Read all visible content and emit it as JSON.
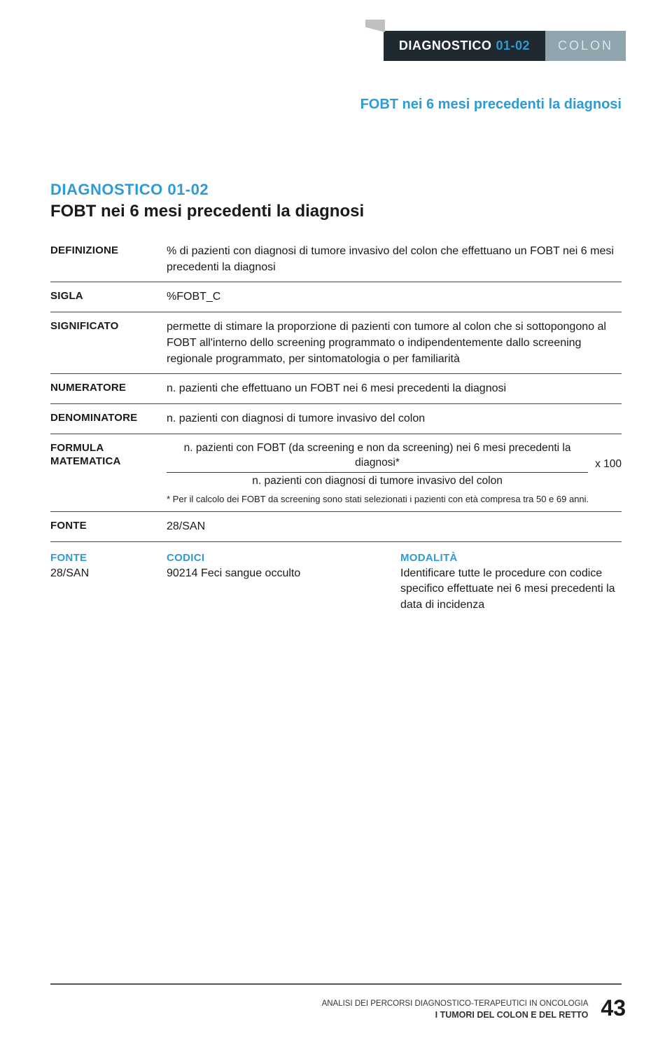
{
  "header": {
    "tab_label": "DIAGNOSTICO",
    "tab_code": "01-02",
    "category": "COLON"
  },
  "subhead": "FOBT nei 6 mesi precedenti la diagnosi",
  "section": {
    "code": "DIAGNOSTICO 01-02",
    "title": "FOBT nei 6 mesi precedenti la diagnosi"
  },
  "rows": {
    "definizione": {
      "label": "DEFINIZIONE",
      "value": "% di pazienti con diagnosi di tumore invasivo del colon che effettuano un FOBT nei 6 mesi precedenti la diagnosi"
    },
    "sigla": {
      "label": "SIGLA",
      "value": "%FOBT_C"
    },
    "significato": {
      "label": "SIGNIFICATO",
      "value": "permette di stimare la proporzione di pazienti con tumore al colon che si sottopongono al FOBT all'interno dello screening programmato o indipendentemente dallo screening regionale programmato, per sintomatologia o per familiarità"
    },
    "numeratore": {
      "label": "NUMERATORE",
      "value": "n. pazienti che effettuano un FOBT nei 6 mesi precedenti la diagnosi"
    },
    "denominatore": {
      "label": "DENOMINATORE",
      "value": "n. pazienti con diagnosi di tumore invasivo del colon"
    },
    "formula": {
      "label": "FORMULA MATEMATICA",
      "numerator": "n. pazienti con FOBT (da screening e non da screening) nei 6 mesi precedenti la diagnosi*",
      "denominator": "n. pazienti con diagnosi di tumore invasivo del colon",
      "mult": "x 100",
      "footnote": "* Per il calcolo dei FOBT da screening sono stati selezionati i pazienti con età compresa tra 50 e 69 anni."
    },
    "fonte": {
      "label": "FONTE",
      "value": "28/SAN"
    }
  },
  "codes": {
    "head_fonte": "FONTE",
    "head_codici": "CODICI",
    "head_modalita": "MODALITÀ",
    "fonte": "28/SAN",
    "codici": "90214 Feci sangue occulto",
    "modalita": "Identificare tutte le procedure con codice specifico effettuate nei 6 mesi precedenti la data di incidenza"
  },
  "footer": {
    "line1": "ANALISI DEI PERCORSI DIAGNOSTICO-TERAPEUTICI IN ONCOLOGIA",
    "line2": "I TUMORI DEL COLON E DEL RETTO",
    "page": "43"
  },
  "colors": {
    "accent": "#2e9bd6",
    "tab_dark_bg": "#1f2a30",
    "tab_light_bg": "#8fa4ac",
    "text": "#1a1a1a",
    "rule": "#444444"
  }
}
